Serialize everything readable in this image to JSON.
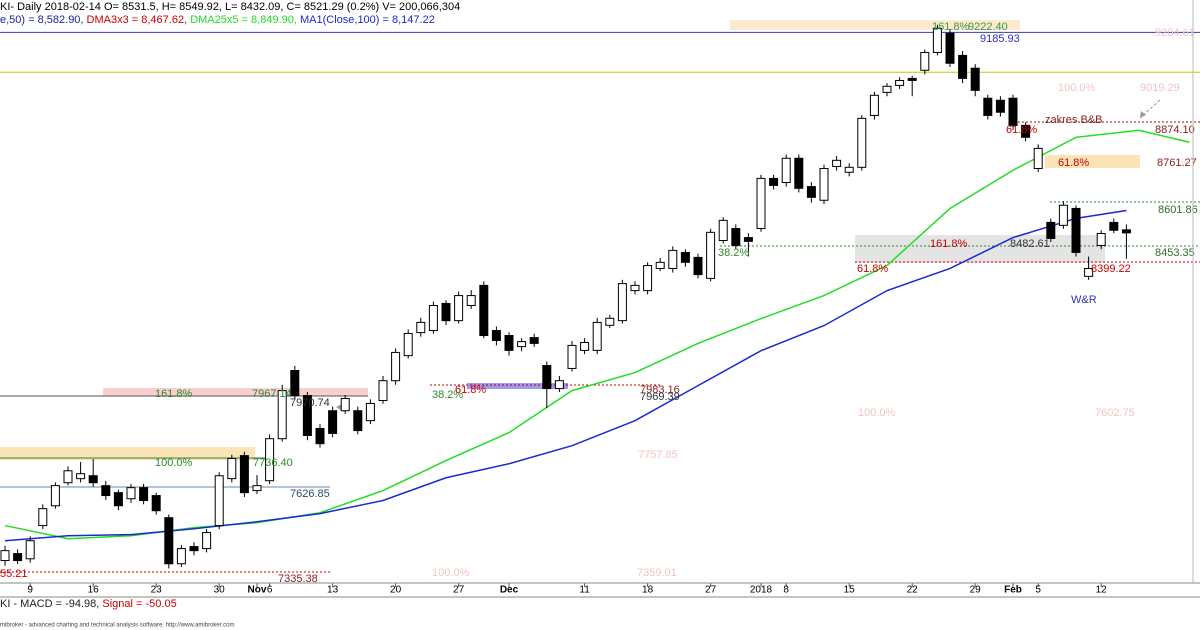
{
  "chart_data": {
    "type": "candlestick",
    "title": "KI- Daily 2018-02-14 O= 8531.5, H= 8549.92, L= 8432.09, C= 8521.29 (0.2%) V= 200,066,304",
    "other_indicators": [
      {
        "text": "e,50) = 8,582.90,",
        "color": "#2020a0"
      },
      {
        "text": "DMA3x3 = 8,467.62,",
        "color": "#cc0000"
      }
    ],
    "macd_title": "KI - MACD = -94.98,",
    "macd_signal": "Signal = -50.05",
    "footer": "mibroker - advanced charting and technical analysis software. http://www.amibroker.com",
    "categories": [
      null,
      null,
      "9",
      null,
      null,
      null,
      null,
      "16",
      null,
      null,
      null,
      null,
      "23",
      null,
      null,
      null,
      null,
      "30",
      null,
      null,
      "Nov",
      "6",
      null,
      null,
      null,
      null,
      "13",
      null,
      null,
      null,
      null,
      "20",
      null,
      null,
      null,
      null,
      "27",
      null,
      null,
      null,
      "Dec",
      null,
      null,
      null,
      null,
      null,
      "11",
      null,
      null,
      null,
      null,
      "18",
      null,
      null,
      null,
      null,
      "27",
      null,
      null,
      null,
      "2018",
      null,
      "8",
      null,
      null,
      null,
      null,
      "15",
      null,
      null,
      null,
      null,
      "22",
      null,
      null,
      null,
      null,
      "29",
      null,
      null,
      "Feb",
      null,
      "5",
      null,
      null,
      null,
      null,
      "12",
      null,
      null,
      null,
      null,
      null,
      null,
      null
    ],
    "open": [
      7397,
      7421,
      7403,
      7517,
      7585,
      7664,
      7678,
      7688,
      7654,
      7630,
      7609,
      7647,
      7620,
      7544,
      7386,
      7445,
      7438,
      7517,
      7678,
      7757,
      7637,
      7671,
      7815,
      8049,
      7963,
      7850,
      7911,
      7911,
      7911,
      7877,
      7946,
      8014,
      8100,
      8179,
      8186,
      8279,
      8220,
      8272,
      8341,
      8186,
      8169,
      8131,
      8162,
      8066,
      7987,
      8056,
      8118,
      8118,
      8204,
      8220,
      8323,
      8323,
      8399,
      8399,
      8454,
      8437,
      8365,
      8495,
      8536,
      8505,
      8536,
      8708,
      8694,
      8777,
      8680,
      8633,
      8749,
      8729,
      8746,
      8924,
      9003,
      9027,
      9051,
      9079,
      9140,
      9206,
      9130,
      9086,
      8983,
      8976,
      8983,
      8890,
      8742,
      8557,
      8547,
      8605,
      8372,
      8478,
      8557,
      8531.5,
      null,
      null,
      null,
      null,
      null
    ],
    "high": [
      7448,
      7435,
      7480,
      7590,
      7665,
      7720,
      7735,
      7745,
      7670,
      7640,
      7660,
      7660,
      7630,
      7555,
      7450,
      7460,
      7505,
      7700,
      7760,
      7770,
      7690,
      7830,
      8000,
      8065,
      7975,
      7865,
      7925,
      7965,
      7925,
      7950,
      8030,
      8125,
      8190,
      8230,
      8285,
      8290,
      8320,
      8325,
      8355,
      8200,
      8180,
      8160,
      8175,
      8080,
      8030,
      8150,
      8160,
      8230,
      8240,
      8360,
      8355,
      8420,
      8435,
      8475,
      8465,
      8450,
      8535,
      8575,
      8550,
      8520,
      8720,
      8720,
      8790,
      8790,
      8695,
      8755,
      8785,
      8760,
      8925,
      9005,
      9035,
      9055,
      9060,
      9150,
      9235,
      9220,
      9145,
      9100,
      8995,
      8990,
      8995,
      8900,
      8825,
      8570,
      8630,
      8615,
      8440,
      8530,
      8570,
      8549.92,
      null,
      null,
      null,
      null,
      null
    ],
    "low": [
      7379,
      7385,
      7390,
      7505,
      7575,
      7655,
      7665,
      7650,
      7605,
      7570,
      7595,
      7590,
      7555,
      7370,
      7375,
      7415,
      7425,
      7505,
      7665,
      7615,
      7625,
      7660,
      7805,
      7950,
      7810,
      7785,
      7820,
      7900,
      7830,
      7865,
      7935,
      8000,
      8090,
      8165,
      8175,
      8205,
      8210,
      8260,
      8160,
      8135,
      8100,
      8115,
      8130,
      7920,
      7975,
      8045,
      8105,
      8105,
      8195,
      8210,
      8310,
      8310,
      8390,
      8385,
      8405,
      8365,
      8355,
      8485,
      8465,
      8440,
      8525,
      8670,
      8680,
      8660,
      8625,
      8620,
      8735,
      8715,
      8735,
      8910,
      8990,
      9015,
      8990,
      9065,
      9130,
      9090,
      9035,
      8990,
      8910,
      8920,
      8875,
      8835,
      8730,
      8490,
      8535,
      8440,
      8360,
      8465,
      8520,
      8432.09,
      null,
      null,
      null,
      null,
      null
    ],
    "close": [
      7431,
      7397,
      7465,
      7575,
      7654,
      7705,
      7695,
      7664,
      7620,
      7585,
      7647,
      7603,
      7568,
      7386,
      7438,
      7431,
      7493,
      7688,
      7747,
      7630,
      7654,
      7815,
      7980,
      7963,
      7826,
      7798,
      7833,
      7953,
      7843,
      7936,
      8014,
      8111,
      8176,
      8214,
      8272,
      8220,
      8306,
      8306,
      8169,
      8152,
      8118,
      8148,
      8142,
      7987,
      8014,
      8135,
      8145,
      8214,
      8228,
      8347,
      8341,
      8409,
      8420,
      8461,
      8420,
      8378,
      8523,
      8564,
      8478,
      8492,
      8708,
      8684,
      8777,
      8674,
      8643,
      8742,
      8770,
      8746,
      8914,
      8993,
      9024,
      9044,
      9044,
      9140,
      9223,
      9103,
      9051,
      9010,
      8924,
      8935,
      8890,
      8849,
      8811,
      8502,
      8616,
      8454,
      8399,
      8519,
      8530,
      8521.29,
      null,
      null,
      null,
      null,
      null
    ],
    "series": [
      {
        "name": "DMA25x5 = 8,849.90,",
        "color": "#22dd22",
        "x": [
          0,
          5,
          10,
          15,
          20,
          25,
          30,
          35,
          40,
          45,
          50,
          55,
          60,
          65,
          70,
          75,
          80,
          85,
          90,
          94
        ],
        "values": [
          7517,
          7472,
          7482,
          7510,
          7527,
          7561,
          7637,
          7740,
          7836,
          7980,
          8042,
          8142,
          8227,
          8306,
          8409,
          8605,
          8736,
          8849,
          8873,
          8832
        ]
      },
      {
        "name": "MA1(Close,100) = 8,147.22",
        "color": "#1a2ad0",
        "x": [
          0,
          5,
          10,
          15,
          20,
          25,
          30,
          35,
          40,
          45,
          50,
          55,
          60,
          65,
          70,
          75,
          80,
          85,
          89
        ],
        "values": [
          7465,
          7482,
          7486,
          7506,
          7530,
          7558,
          7603,
          7681,
          7729,
          7791,
          7877,
          7997,
          8117,
          8203,
          8323,
          8399,
          8505,
          8571,
          8598
        ]
      }
    ],
    "levels": [
      {
        "value": 9209,
        "color": "#3a3ab0"
      },
      {
        "value": 9072,
        "color": "#c8c800"
      }
    ],
    "annotations": [
      {
        "text": "161.8%",
        "color": "#3a9a3a"
      },
      {
        "text": "9222.40",
        "color": "#3a9a3a"
      },
      {
        "text": "9185.93",
        "color": "#3030c0"
      },
      {
        "text": "9204.61",
        "color": "#f0c4c4"
      },
      {
        "text": "100.0%",
        "color": "#f0c4c4"
      },
      {
        "text": "9019.29",
        "color": "#f0c4c4"
      },
      {
        "text": "zakres B&B",
        "color": "#8b1a1a"
      },
      {
        "text": "61.8%",
        "color": "#cc0000"
      },
      {
        "text": "8874.10",
        "color": "#8b1a1a"
      },
      {
        "text": "61.8%",
        "color": "#cc0000"
      },
      {
        "text": "8761.27",
        "color": "#8b1a1a"
      },
      {
        "text": "8601.86",
        "color": "#2d6a2d"
      },
      {
        "text": "161.8%",
        "color": "#cc0000"
      },
      {
        "text": "8482.61",
        "color": "#333333"
      },
      {
        "text": "8453.35",
        "color": "#2d6a2d"
      },
      {
        "text": "38.2%",
        "color": "#2d8a2d"
      },
      {
        "text": "61.8%",
        "color": "#cc0000"
      },
      {
        "text": "8399.22",
        "color": "#cc0000"
      },
      {
        "text": "W&R",
        "color": "#3030c0"
      },
      {
        "text": "161.8%",
        "color": "#2d8a2d"
      },
      {
        "text": "7967.14",
        "color": "#2d8a2d"
      },
      {
        "text": "7970.74",
        "color": "#333333"
      },
      {
        "text": "38.2%",
        "color": "#2d8a2d"
      },
      {
        "text": "61.8%",
        "color": "#cc0000"
      },
      {
        "text": "7983.16",
        "color": "#8b1a1a"
      },
      {
        "text": "7969.39",
        "color": "#333333"
      },
      {
        "text": "100.0%",
        "color": "#f0c4c4"
      },
      {
        "text": "7602.75",
        "color": "#f0c4c4"
      },
      {
        "text": "7757.85",
        "color": "#f0c4c4"
      },
      {
        "text": "100.0%",
        "color": "#2d8a2d"
      },
      {
        "text": "7736.40",
        "color": "#2d8a2d"
      },
      {
        "text": "7626.85",
        "color": "#2d4a6a"
      },
      {
        "text": "55.21",
        "color": "#cc0000"
      },
      {
        "text": "7335.38",
        "color": "#8b1a1a"
      },
      {
        "text": "100.0%",
        "color": "#f0c4c4"
      },
      {
        "text": "7359.01",
        "color": "#f0c4c4"
      }
    ],
    "ylim": [
      7320,
      9320
    ]
  }
}
